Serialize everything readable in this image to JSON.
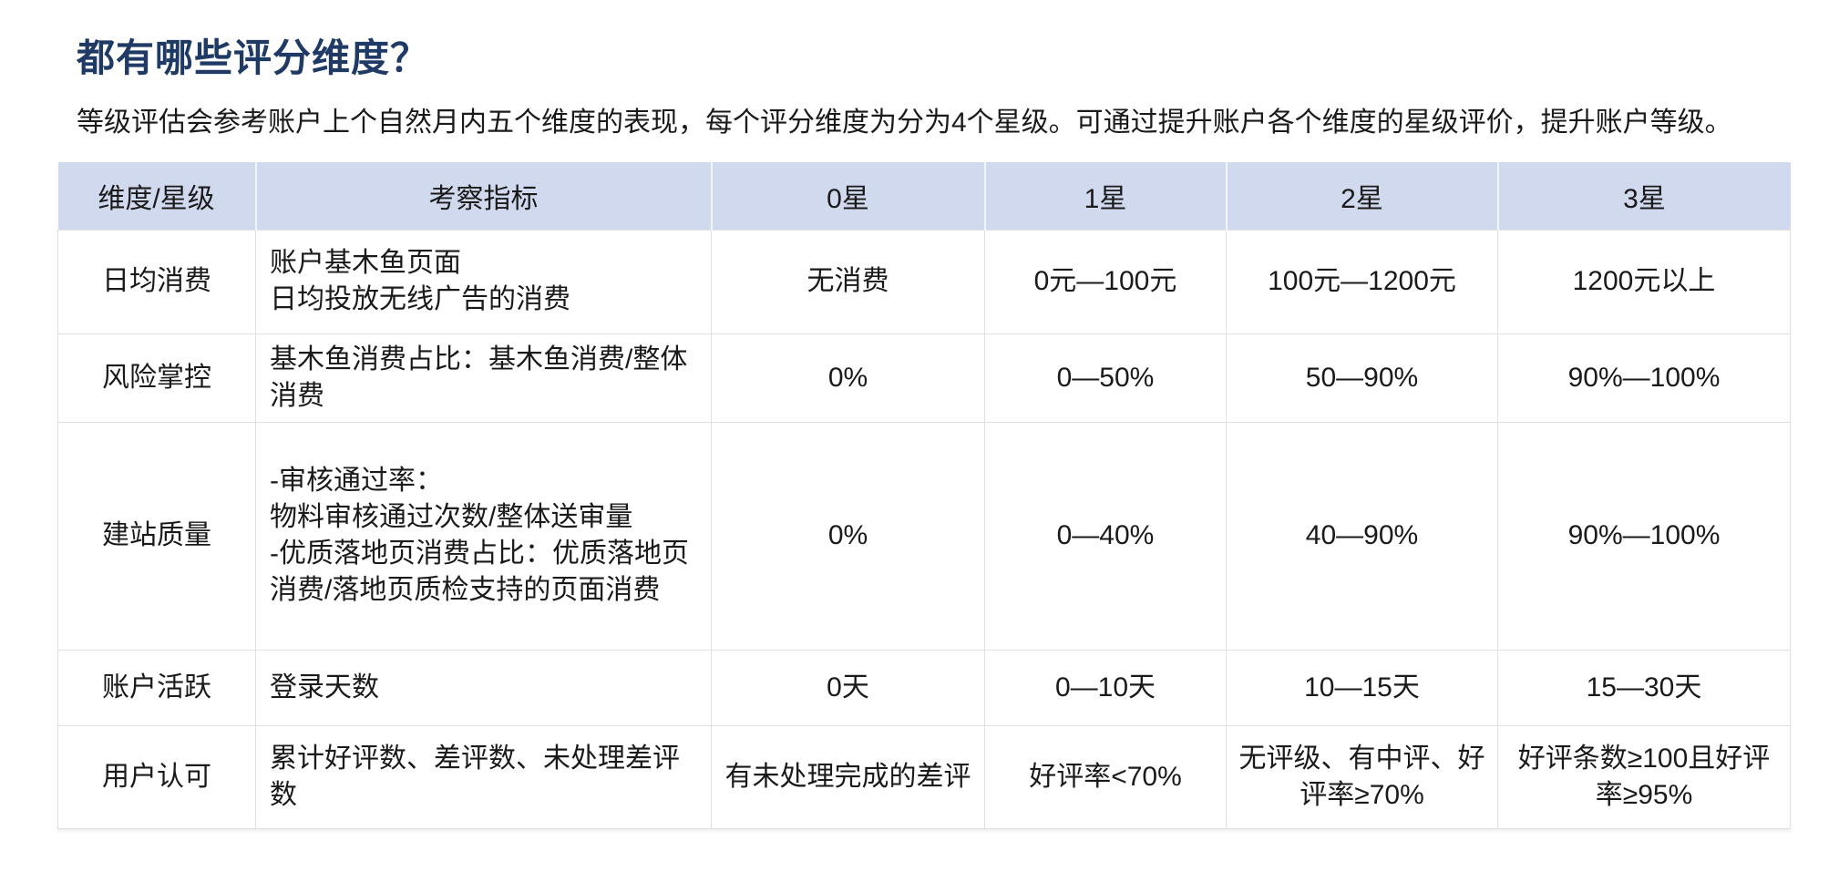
{
  "page": {
    "title": "都有哪些评分维度？",
    "subtitle": "等级评估会参考账户上个自然月内五个维度的表现，每个评分维度为分为4个星级。可通过提升账户各个维度的星级评价，提升账户等级。"
  },
  "colors": {
    "title": "#1f3a64",
    "header_bg": "#d0d9ed",
    "border": "#e0e0e0",
    "text": "#1a1a1a"
  },
  "table": {
    "columns": [
      "维度/星级",
      "考察指标",
      "0星",
      "1星",
      "2星",
      "3星"
    ],
    "rows": [
      [
        "日均消费",
        "账户基木鱼页面\n日均投放无线广告的消费",
        "无消费",
        "0元—100元",
        "100元—1200元",
        "1200元以上"
      ],
      [
        "风险掌控",
        "基木鱼消费占比：基木鱼消费/整体消费",
        "0%",
        "0—50%",
        "50—90%",
        "90%—100%"
      ],
      [
        "建站质量",
        "-审核通过率：\n物料审核通过次数/整体送审量\n-优质落地页消费占比：优质落地页消费/落地页质检支持的页面消费",
        "0%",
        "0—40%",
        "40—90%",
        "90%—100%"
      ],
      [
        "账户活跃",
        "登录天数",
        "0天",
        "0—10天",
        "10—15天",
        "15—30天"
      ],
      [
        "用户认可",
        "累计好评数、差评数、未处理差评数",
        "有未处理完成的差评",
        "好评率<70%",
        "无评级、有中评、好评率≥70%",
        "好评条数≥100且好评率≥95%"
      ]
    ]
  }
}
